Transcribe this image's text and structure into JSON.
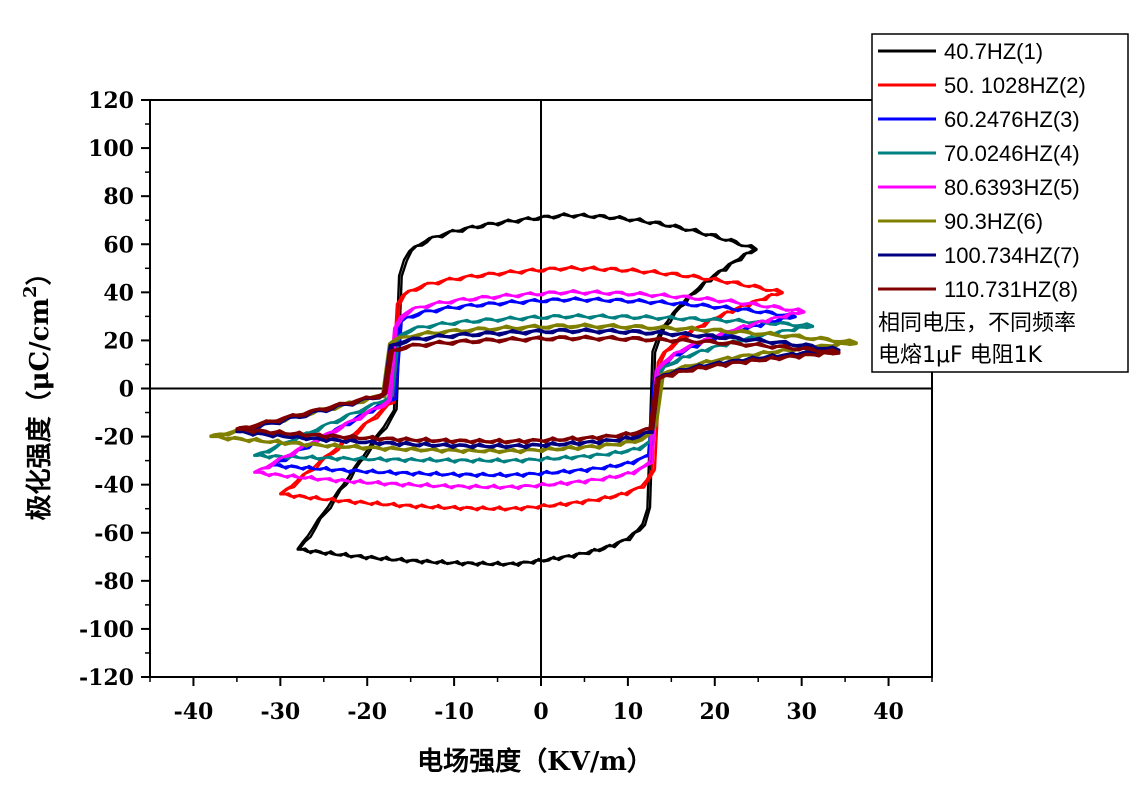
{
  "chart_data": {
    "type": "line",
    "xlabel": "电场强度（KV/m）",
    "ylabel": {
      "main": "极化强度（μC/cm",
      "sup": "2",
      "tail": "）"
    },
    "xlim": [
      -45,
      45
    ],
    "ylim": [
      -120,
      120
    ],
    "x_ticks": [
      -40,
      -30,
      -20,
      -10,
      0,
      10,
      20,
      30,
      40
    ],
    "y_ticks": [
      -120,
      -100,
      -80,
      -60,
      -40,
      -20,
      0,
      20,
      40,
      60,
      80,
      100,
      120
    ],
    "grid": false,
    "legend_position": "top-right",
    "series": [
      {
        "name": "40.7HZ(1)",
        "color": "#000000",
        "ec_pos": 12.5,
        "ec_neg": -16.5,
        "pmax": 72,
        "pmin": -73,
        "emax": 24.5,
        "emin": -28,
        "p_at_emax": 58,
        "p_at_emin": -67
      },
      {
        "name": "50. 1028HZ(2)",
        "color": "#ff0000",
        "ec_pos": 13,
        "ec_neg": -17,
        "pmax": 50,
        "pmin": -50,
        "emax": 27.5,
        "emin": -30,
        "p_at_emax": 40,
        "p_at_emin": -44
      },
      {
        "name": "60.2476HZ(3)",
        "color": "#0000ff",
        "ec_pos": 13,
        "ec_neg": -17,
        "pmax": 37,
        "pmin": -36,
        "emax": 29,
        "emin": -31,
        "p_at_emax": 30,
        "p_at_emin": -32
      },
      {
        "name": "70.0246HZ(4)",
        "color": "#008080",
        "ec_pos": 13,
        "ec_neg": -17,
        "pmax": 30,
        "pmin": -30,
        "emax": 31,
        "emin": -33,
        "p_at_emax": 26,
        "p_at_emin": -28
      },
      {
        "name": "80.6393HZ(5)",
        "color": "#ff00ff",
        "ec_pos": 13,
        "ec_neg": -17,
        "pmax": 40,
        "pmin": -41,
        "emax": 30,
        "emin": -33,
        "p_at_emax": 32,
        "p_at_emin": -35
      },
      {
        "name": "90.3HZ(6)",
        "color": "#808000",
        "ec_pos": 13,
        "ec_neg": -18,
        "pmax": 26,
        "pmin": -26,
        "emax": 36,
        "emin": -38,
        "p_at_emax": 19,
        "p_at_emin": -20
      },
      {
        "name": "100.734HZ(7)",
        "color": "#000080",
        "ec_pos": 13,
        "ec_neg": -18,
        "pmax": 24,
        "pmin": -24,
        "emax": 34,
        "emin": -35,
        "p_at_emax": 16,
        "p_at_emin": -18
      },
      {
        "name": "110.731HZ(8)",
        "color": "#800000",
        "ec_pos": 13,
        "ec_neg": -18,
        "pmax": 21,
        "pmin": -22,
        "emax": 34,
        "emin": -35,
        "p_at_emax": 15,
        "p_at_emin": -17
      }
    ],
    "annotations": [
      "相同电压，不同频率",
      "电熔1μF 电阻1K"
    ]
  }
}
